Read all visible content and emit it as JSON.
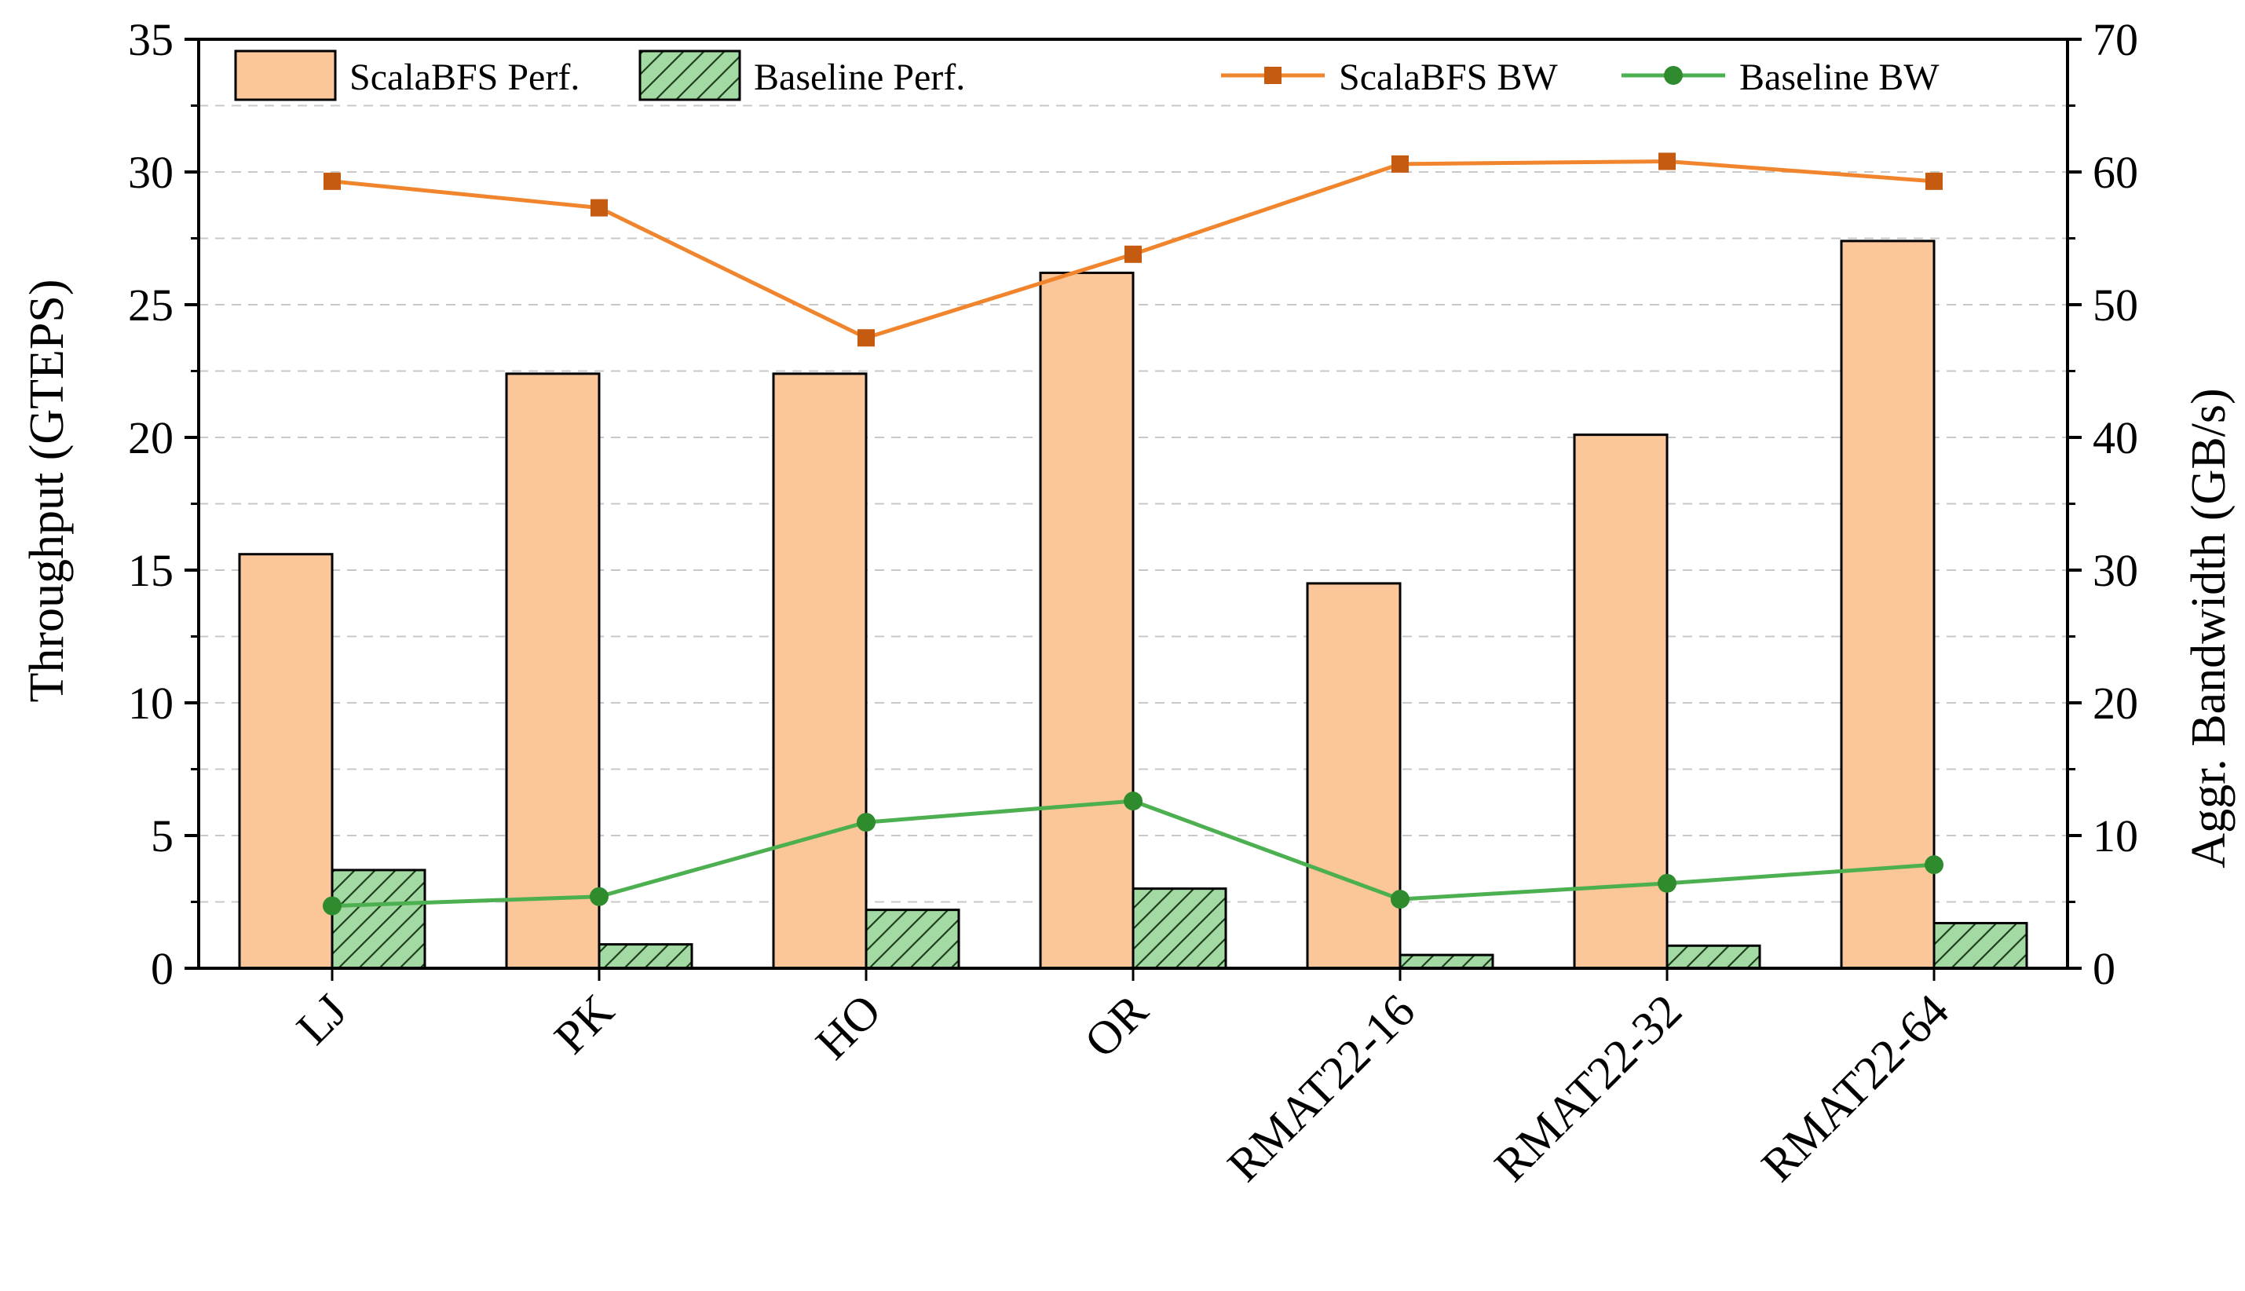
{
  "chart_data": {
    "type": "bar",
    "categories": [
      "LJ",
      "PK",
      "HO",
      "OR",
      "RMAT22-16",
      "RMAT22-32",
      "RMAT22-64"
    ],
    "series": [
      {
        "name": "ScalaBFS Perf.",
        "kind": "bar",
        "axis": "left",
        "color": "#fbc699",
        "values": [
          15.6,
          22.4,
          22.4,
          26.2,
          14.5,
          20.1,
          27.4
        ]
      },
      {
        "name": "Baseline Perf.",
        "kind": "bar",
        "axis": "left",
        "color": "#a3d9a3",
        "pattern": "hatch",
        "values": [
          3.7,
          0.9,
          2.2,
          3.0,
          0.5,
          0.85,
          1.7
        ]
      },
      {
        "name": "ScalaBFS BW",
        "kind": "line",
        "axis": "right",
        "color": "#f0852d",
        "marker": "square",
        "marker_color": "#c55a11",
        "values": [
          59.3,
          57.3,
          47.5,
          53.8,
          60.6,
          60.8,
          59.3
        ]
      },
      {
        "name": "Baseline BW",
        "kind": "line",
        "axis": "right",
        "color": "#4caf50",
        "marker": "circle",
        "marker_color": "#2e8b2e",
        "values": [
          4.7,
          5.4,
          11.0,
          12.6,
          5.2,
          6.4,
          7.8
        ]
      }
    ],
    "ylabel": "Throughput (GTEPS)",
    "ylabel_right": "Aggr. Bandwidth (GB/s)",
    "ylim": [
      0,
      35
    ],
    "ylim_right": [
      0,
      70
    ],
    "yticks": [
      0,
      5,
      10,
      15,
      20,
      25,
      30,
      35
    ],
    "yticks_right": [
      0,
      10,
      20,
      30,
      40,
      50,
      60,
      70
    ],
    "grid": "dashed horizontal",
    "legend": "top"
  }
}
